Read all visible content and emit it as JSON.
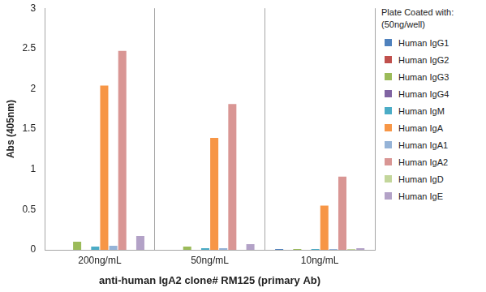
{
  "chart_data": {
    "type": "bar",
    "categories": [
      "200ng/mL",
      "50ng/mL",
      "10ng/mL"
    ],
    "x_label": "anti-human IgA2 clone# RM125 (primary Ab)",
    "y_label": "Abs (405nm)",
    "legend_title": [
      "Plate Coated with:",
      "(50ng/well)"
    ],
    "series": [
      {
        "name": "Human IgG1",
        "color": "#4f81bd",
        "values": [
          0,
          0,
          0.01
        ]
      },
      {
        "name": "Human IgG2",
        "color": "#c0504d",
        "values": [
          0,
          0,
          0
        ]
      },
      {
        "name": "Human IgG3",
        "color": "#9bbb59",
        "values": [
          0.1,
          0.04,
          0.01
        ]
      },
      {
        "name": "Human IgG4",
        "color": "#8064a2",
        "values": [
          0,
          0,
          0
        ]
      },
      {
        "name": "Human IgM",
        "color": "#4bacc6",
        "values": [
          0.04,
          0.02,
          0.01
        ]
      },
      {
        "name": "Human IgA",
        "color": "#f79646",
        "values": [
          2.04,
          1.39,
          0.55
        ]
      },
      {
        "name": "Human IgA1",
        "color": "#95b3d7",
        "values": [
          0.05,
          0.02,
          0.01
        ]
      },
      {
        "name": "Human IgA2",
        "color": "#d99694",
        "values": [
          2.47,
          1.81,
          0.91
        ]
      },
      {
        "name": "Human IgD",
        "color": "#c3d69b",
        "values": [
          0,
          0,
          0.01
        ]
      },
      {
        "name": "Human IgE",
        "color": "#b3a2c7",
        "values": [
          0.17,
          0.07,
          0.02
        ]
      }
    ],
    "ylim": [
      0,
      3
    ],
    "yticks": [
      0,
      0.5,
      1,
      1.5,
      2,
      2.5,
      3
    ],
    "grid": "x",
    "legend": "right"
  }
}
